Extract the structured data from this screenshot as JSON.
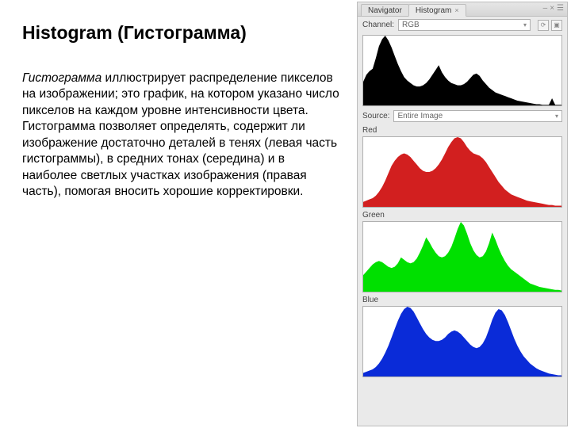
{
  "text": {
    "heading": "Histogram (Гистограмма)",
    "para_lead": "Гистограмма",
    "para_body": " иллюстрирует распределение пикселов на изображении; это график, на котором указано число пикселов на каждом уровне интенсивности цвета. Гистограмма позволяет определять, содержит ли изображение достаточно деталей в тенях (левая часть гистограммы), в средних тонах (середина) и в наиболее светлых участках изображения (правая часть), помогая вносить хорошие корректировки."
  },
  "panel": {
    "tabs": [
      "Navigator",
      "Histogram"
    ],
    "active_tab": 1,
    "channel_label": "Channel:",
    "channel_value": "RGB",
    "source_label": "Source:",
    "source_value": "Entire Image",
    "labels": {
      "red": "Red",
      "green": "Green",
      "blue": "Blue"
    }
  },
  "histograms": {
    "bg": "#ffffff",
    "border": "#b0b0b0",
    "rgb": {
      "fill": "#000000",
      "values": [
        40,
        52,
        58,
        62,
        80,
        100,
        112,
        118,
        110,
        98,
        84,
        70,
        58,
        48,
        42,
        38,
        34,
        32,
        32,
        34,
        38,
        44,
        52,
        60,
        68,
        56,
        48,
        42,
        38,
        36,
        34,
        34,
        36,
        40,
        46,
        52,
        54,
        50,
        42,
        36,
        30,
        26,
        22,
        20,
        18,
        16,
        14,
        12,
        10,
        8,
        7,
        6,
        5,
        4,
        3,
        2,
        2,
        1,
        1,
        1,
        12,
        1,
        1,
        1
      ]
    },
    "red": {
      "fill": "#d21f1f",
      "values": [
        8,
        10,
        12,
        14,
        18,
        24,
        32,
        42,
        54,
        66,
        74,
        80,
        84,
        86,
        84,
        80,
        74,
        68,
        62,
        58,
        56,
        56,
        58,
        62,
        68,
        76,
        86,
        96,
        104,
        110,
        112,
        110,
        104,
        96,
        90,
        86,
        84,
        82,
        78,
        72,
        64,
        56,
        48,
        40,
        34,
        28,
        24,
        20,
        18,
        16,
        14,
        12,
        10,
        9,
        8,
        7,
        6,
        5,
        4,
        3,
        3,
        2,
        2,
        2
      ]
    },
    "green": {
      "fill": "#00e000",
      "values": [
        28,
        34,
        40,
        46,
        50,
        52,
        50,
        46,
        42,
        40,
        42,
        48,
        58,
        54,
        50,
        48,
        50,
        56,
        66,
        78,
        92,
        84,
        74,
        66,
        60,
        58,
        60,
        66,
        76,
        90,
        106,
        118,
        112,
        98,
        82,
        70,
        62,
        58,
        60,
        68,
        82,
        100,
        88,
        74,
        62,
        52,
        44,
        38,
        34,
        30,
        26,
        22,
        18,
        14,
        12,
        10,
        8,
        7,
        6,
        5,
        4,
        3,
        3,
        2
      ]
    },
    "blue": {
      "fill": "#0a2bd8",
      "values": [
        6,
        8,
        10,
        12,
        16,
        22,
        30,
        40,
        52,
        66,
        80,
        94,
        106,
        114,
        118,
        116,
        110,
        100,
        90,
        80,
        72,
        66,
        62,
        60,
        60,
        62,
        66,
        72,
        76,
        78,
        76,
        72,
        66,
        60,
        54,
        50,
        48,
        50,
        56,
        66,
        80,
        96,
        108,
        114,
        112,
        104,
        92,
        78,
        64,
        52,
        42,
        34,
        28,
        22,
        18,
        14,
        11,
        9,
        7,
        5,
        4,
        3,
        2,
        2
      ]
    }
  }
}
